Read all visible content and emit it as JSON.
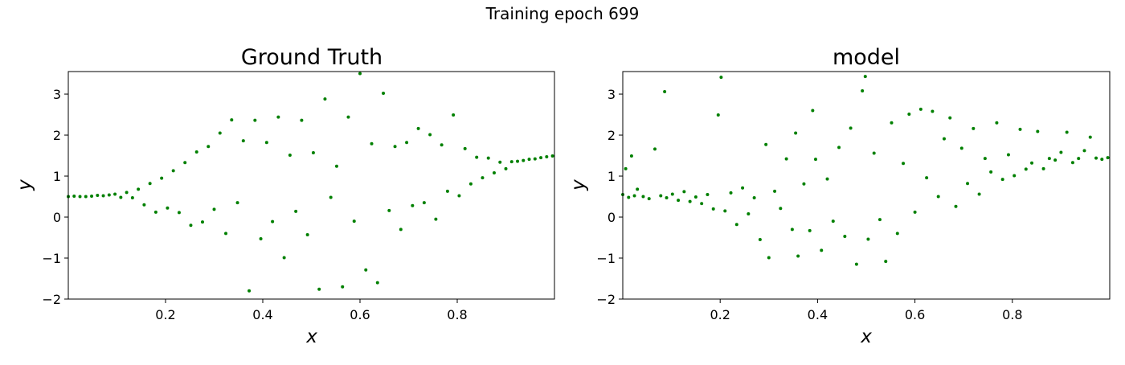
{
  "figure": {
    "suptitle": "Training epoch 699"
  },
  "colors": {
    "points": "#008000"
  },
  "chart_data": [
    {
      "type": "scatter",
      "title": "Ground Truth",
      "xlabel": "x",
      "ylabel": "y",
      "xlim": [
        0.0,
        1.0
      ],
      "ylim": [
        -2.0,
        3.55
      ],
      "xticks": [
        0.2,
        0.4,
        0.6,
        0.8
      ],
      "xtick_labels": [
        "0.2",
        "0.4",
        "0.6",
        "0.8"
      ],
      "yticks": [
        -2,
        -1,
        0,
        1,
        2,
        3
      ],
      "ytick_labels": [
        "−2",
        "−1",
        "0",
        "1",
        "2",
        "3"
      ],
      "grid": false,
      "color": "#008000",
      "points": [
        [
          0.0,
          0.5
        ],
        [
          0.012,
          0.51
        ],
        [
          0.024,
          0.5
        ],
        [
          0.036,
          0.5
        ],
        [
          0.048,
          0.51
        ],
        [
          0.06,
          0.53
        ],
        [
          0.072,
          0.52
        ],
        [
          0.084,
          0.54
        ],
        [
          0.096,
          0.56
        ],
        [
          0.108,
          0.48
        ],
        [
          0.12,
          0.6
        ],
        [
          0.132,
          0.47
        ],
        [
          0.144,
          0.68
        ],
        [
          0.156,
          0.3
        ],
        [
          0.168,
          0.82
        ],
        [
          0.18,
          0.12
        ],
        [
          0.192,
          0.95
        ],
        [
          0.204,
          0.22
        ],
        [
          0.216,
          1.13
        ],
        [
          0.228,
          0.11
        ],
        [
          0.24,
          1.33
        ],
        [
          0.252,
          -0.2
        ],
        [
          0.264,
          1.59
        ],
        [
          0.276,
          -0.12
        ],
        [
          0.288,
          1.72
        ],
        [
          0.3,
          0.19
        ],
        [
          0.312,
          2.05
        ],
        [
          0.324,
          -0.4
        ],
        [
          0.336,
          2.37
        ],
        [
          0.348,
          0.35
        ],
        [
          0.36,
          1.86
        ],
        [
          0.372,
          -1.8
        ],
        [
          0.384,
          2.36
        ],
        [
          0.396,
          -0.53
        ],
        [
          0.408,
          1.82
        ],
        [
          0.42,
          -0.11
        ],
        [
          0.432,
          2.44
        ],
        [
          0.444,
          -0.99
        ],
        [
          0.456,
          1.51
        ],
        [
          0.468,
          0.14
        ],
        [
          0.48,
          2.36
        ],
        [
          0.492,
          -0.43
        ],
        [
          0.504,
          1.57
        ],
        [
          0.516,
          -1.76
        ],
        [
          0.528,
          2.88
        ],
        [
          0.54,
          0.48
        ],
        [
          0.552,
          1.24
        ],
        [
          0.564,
          -1.7
        ],
        [
          0.576,
          2.44
        ],
        [
          0.588,
          -0.1
        ],
        [
          0.6,
          3.5
        ],
        [
          0.612,
          -1.29
        ],
        [
          0.624,
          1.79
        ],
        [
          0.636,
          -1.6
        ],
        [
          0.648,
          3.02
        ],
        [
          0.66,
          0.16
        ],
        [
          0.672,
          1.72
        ],
        [
          0.684,
          -0.3
        ],
        [
          0.696,
          1.82
        ],
        [
          0.708,
          0.28
        ],
        [
          0.72,
          2.16
        ],
        [
          0.732,
          0.35
        ],
        [
          0.744,
          2.01
        ],
        [
          0.756,
          -0.05
        ],
        [
          0.768,
          1.76
        ],
        [
          0.78,
          0.63
        ],
        [
          0.792,
          2.49
        ],
        [
          0.804,
          0.52
        ],
        [
          0.816,
          1.67
        ],
        [
          0.828,
          0.81
        ],
        [
          0.84,
          1.46
        ],
        [
          0.852,
          0.96
        ],
        [
          0.864,
          1.44
        ],
        [
          0.876,
          1.08
        ],
        [
          0.888,
          1.34
        ],
        [
          0.9,
          1.18
        ],
        [
          0.912,
          1.35
        ],
        [
          0.924,
          1.36
        ],
        [
          0.936,
          1.38
        ],
        [
          0.948,
          1.41
        ],
        [
          0.96,
          1.42
        ],
        [
          0.972,
          1.45
        ],
        [
          0.984,
          1.47
        ],
        [
          0.996,
          1.49
        ]
      ]
    },
    {
      "type": "scatter",
      "title": "model",
      "xlabel": "x",
      "ylabel": "y",
      "xlim": [
        0.0,
        1.0
      ],
      "ylim": [
        -2.0,
        3.55
      ],
      "xticks": [
        0.2,
        0.4,
        0.6,
        0.8
      ],
      "xtick_labels": [
        "0.2",
        "0.4",
        "0.6",
        "0.8"
      ],
      "yticks": [
        -2,
        -1,
        0,
        1,
        2,
        3
      ],
      "ytick_labels": [
        "−2",
        "−1",
        "0",
        "1",
        "2",
        "3"
      ],
      "grid": false,
      "color": "#008000",
      "points": [
        [
          0.0,
          0.55
        ],
        [
          0.006,
          1.18
        ],
        [
          0.012,
          0.48
        ],
        [
          0.018,
          1.49
        ],
        [
          0.024,
          0.52
        ],
        [
          0.03,
          0.68
        ],
        [
          0.042,
          0.5
        ],
        [
          0.054,
          0.45
        ],
        [
          0.066,
          1.66
        ],
        [
          0.078,
          0.52
        ],
        [
          0.086,
          3.06
        ],
        [
          0.09,
          0.47
        ],
        [
          0.102,
          0.56
        ],
        [
          0.114,
          0.41
        ],
        [
          0.126,
          0.62
        ],
        [
          0.138,
          0.38
        ],
        [
          0.15,
          0.49
        ],
        [
          0.162,
          0.33
        ],
        [
          0.174,
          0.55
        ],
        [
          0.186,
          0.2
        ],
        [
          0.196,
          2.49
        ],
        [
          0.202,
          3.41
        ],
        [
          0.21,
          0.15
        ],
        [
          0.222,
          0.59
        ],
        [
          0.234,
          -0.18
        ],
        [
          0.246,
          0.71
        ],
        [
          0.258,
          0.08
        ],
        [
          0.27,
          0.47
        ],
        [
          0.282,
          -0.55
        ],
        [
          0.294,
          1.77
        ],
        [
          0.3,
          -0.99
        ],
        [
          0.312,
          0.63
        ],
        [
          0.324,
          0.21
        ],
        [
          0.336,
          1.42
        ],
        [
          0.348,
          -0.3
        ],
        [
          0.355,
          2.05
        ],
        [
          0.36,
          -0.95
        ],
        [
          0.372,
          0.81
        ],
        [
          0.384,
          -0.33
        ],
        [
          0.39,
          2.6
        ],
        [
          0.396,
          1.41
        ],
        [
          0.408,
          -0.81
        ],
        [
          0.42,
          0.93
        ],
        [
          0.432,
          -0.1
        ],
        [
          0.444,
          1.7
        ],
        [
          0.456,
          -0.47
        ],
        [
          0.468,
          2.17
        ],
        [
          0.48,
          -1.15
        ],
        [
          0.492,
          3.08
        ],
        [
          0.498,
          3.43
        ],
        [
          0.504,
          -0.54
        ],
        [
          0.516,
          1.56
        ],
        [
          0.528,
          -0.06
        ],
        [
          0.54,
          -1.08
        ],
        [
          0.552,
          2.3
        ],
        [
          0.564,
          -0.4
        ],
        [
          0.576,
          1.31
        ],
        [
          0.588,
          2.51
        ],
        [
          0.6,
          0.12
        ],
        [
          0.612,
          2.63
        ],
        [
          0.624,
          0.96
        ],
        [
          0.636,
          2.58
        ],
        [
          0.648,
          0.5
        ],
        [
          0.66,
          1.91
        ],
        [
          0.672,
          2.42
        ],
        [
          0.684,
          0.26
        ],
        [
          0.696,
          1.68
        ],
        [
          0.708,
          0.82
        ],
        [
          0.72,
          2.16
        ],
        [
          0.732,
          0.56
        ],
        [
          0.744,
          1.43
        ],
        [
          0.756,
          1.1
        ],
        [
          0.768,
          2.3
        ],
        [
          0.78,
          0.92
        ],
        [
          0.792,
          1.52
        ],
        [
          0.804,
          1.01
        ],
        [
          0.816,
          2.14
        ],
        [
          0.828,
          1.17
        ],
        [
          0.84,
          1.32
        ],
        [
          0.852,
          2.09
        ],
        [
          0.864,
          1.18
        ],
        [
          0.876,
          1.43
        ],
        [
          0.888,
          1.39
        ],
        [
          0.9,
          1.58
        ],
        [
          0.912,
          2.07
        ],
        [
          0.924,
          1.33
        ],
        [
          0.936,
          1.43
        ],
        [
          0.948,
          1.62
        ],
        [
          0.96,
          1.95
        ],
        [
          0.972,
          1.44
        ],
        [
          0.984,
          1.41
        ],
        [
          0.996,
          1.45
        ]
      ]
    }
  ]
}
